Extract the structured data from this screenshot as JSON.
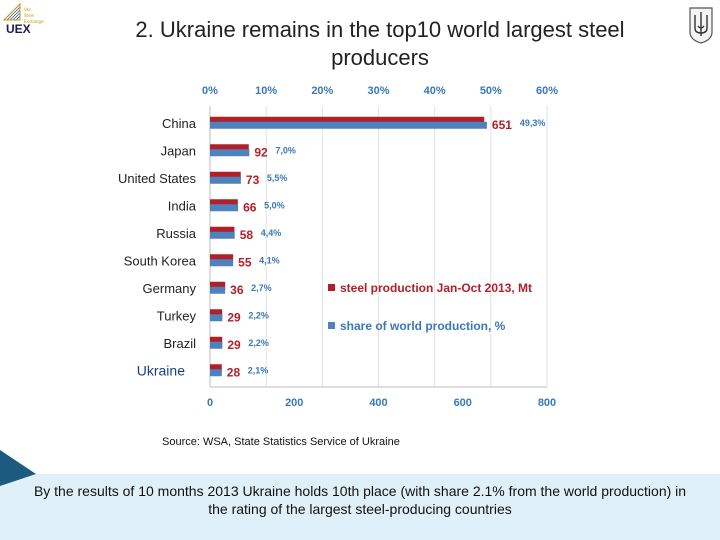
{
  "header": {
    "logo_text": "UEX",
    "logo_small": [
      "Ukr",
      "Steel",
      "Exchange"
    ],
    "title_line1": "2. Ukraine remains in the top10 world largest steel",
    "title_line2": "producers"
  },
  "chart_data": {
    "type": "bar",
    "title": "2. Ukraine remains in the top10 world largest steel producers",
    "categories": [
      "China",
      "Japan",
      "United States",
      "India",
      "Russia",
      "South Korea",
      "Germany",
      "Turkey",
      "Brazil",
      "Ukraine"
    ],
    "series": [
      {
        "name": "steel production Jan-Oct 2013, Mt",
        "color": "#b0202a",
        "values": [
          651,
          92,
          73,
          66,
          58,
          55,
          36,
          29,
          29,
          28
        ],
        "labels": [
          "651",
          "92",
          "73",
          "66",
          "58",
          "55",
          "36",
          "29",
          "29",
          "28"
        ]
      },
      {
        "name": "share of world production, %",
        "color": "#4f81bd",
        "values": [
          49.3,
          7.0,
          5.5,
          5.0,
          4.4,
          4.1,
          2.7,
          2.2,
          2.2,
          2.1
        ],
        "labels": [
          "49,3%",
          "7,0%",
          "5,5%",
          "5,0%",
          "4,4%",
          "4,1%",
          "2,7%",
          "2,2%",
          "2,2%",
          "2,1%"
        ]
      }
    ],
    "x_bottom": {
      "range": [
        0,
        800
      ],
      "ticks": [
        "0",
        "200",
        "400",
        "600",
        "800"
      ]
    },
    "x_top": {
      "range": [
        0,
        60
      ],
      "ticks": [
        "0%",
        "10%",
        "20%",
        "30%",
        "40%",
        "50%",
        "60%"
      ]
    },
    "legend": [
      "steel production Jan-Oct 2013, Mt",
      "share of world production, %"
    ],
    "legend_position": "right"
  },
  "source": "Source: WSA, State Statistics Service of Ukraine",
  "footer": {
    "text": "By the results of 10 months 2013 Ukraine holds 10th place (with share 2.1% from the world production) in the rating of the largest steel-producing countries"
  },
  "colors": {
    "accent_red": "#b0202a",
    "accent_blue": "#4f81bd",
    "tick_blue": "#3a78b8",
    "footer_bg": "#dff0f8",
    "corner": "#1c5a80"
  }
}
